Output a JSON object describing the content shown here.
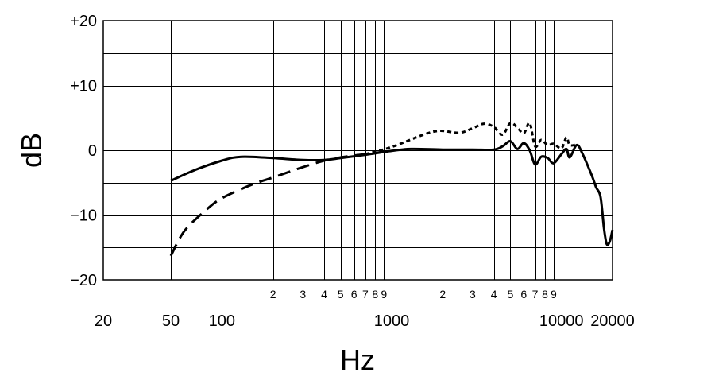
{
  "chart_data": {
    "type": "line",
    "title": "",
    "xlabel": "Hz",
    "ylabel": "dB",
    "xscale": "log",
    "xlim": [
      20,
      20000
    ],
    "ylim": [
      -20,
      20
    ],
    "grid": true,
    "y_ticks": [
      {
        "value": 20,
        "label": "+20"
      },
      {
        "value": 10,
        "label": "+10"
      },
      {
        "value": 0,
        "label": "0"
      },
      {
        "value": -10,
        "label": "−10"
      },
      {
        "value": -20,
        "label": "−20"
      }
    ],
    "x_major_ticks": [
      {
        "value": 20,
        "label": "20"
      },
      {
        "value": 50,
        "label": "50"
      },
      {
        "value": 100,
        "label": "100"
      },
      {
        "value": 1000,
        "label": "1000"
      },
      {
        "value": 10000,
        "label": "10000"
      },
      {
        "value": 20000,
        "label": "20000"
      }
    ],
    "x_minor_labels": [
      {
        "value": 200,
        "label": "2"
      },
      {
        "value": 300,
        "label": "3"
      },
      {
        "value": 400,
        "label": "4"
      },
      {
        "value": 500,
        "label": "5"
      },
      {
        "value": 600,
        "label": "6"
      },
      {
        "value": 700,
        "label": "7"
      },
      {
        "value": 800,
        "label": "8"
      },
      {
        "value": 900,
        "label": "9"
      },
      {
        "value": 2000,
        "label": "2"
      },
      {
        "value": 3000,
        "label": "3"
      },
      {
        "value": 4000,
        "label": "4"
      },
      {
        "value": 5000,
        "label": "5"
      },
      {
        "value": 6000,
        "label": "6"
      },
      {
        "value": 7000,
        "label": "7"
      },
      {
        "value": 8000,
        "label": "8"
      },
      {
        "value": 9000,
        "label": "9"
      }
    ],
    "x_gridlines": [
      50,
      100,
      200,
      300,
      400,
      500,
      600,
      700,
      800,
      900,
      1000,
      2000,
      3000,
      4000,
      5000,
      6000,
      7000,
      8000,
      9000,
      10000
    ],
    "y_gridlines": [
      -15,
      -10,
      -5,
      0,
      5,
      10,
      15
    ],
    "series": [
      {
        "style": "solid",
        "points": [
          [
            50,
            -4.7
          ],
          [
            70,
            -3.0
          ],
          [
            100,
            -1.6
          ],
          [
            130,
            -1.0
          ],
          [
            200,
            -1.2
          ],
          [
            300,
            -1.5
          ],
          [
            400,
            -1.5
          ],
          [
            500,
            -1.2
          ],
          [
            700,
            -0.7
          ],
          [
            1000,
            -0.1
          ],
          [
            1300,
            0.2
          ],
          [
            2000,
            0.1
          ],
          [
            3000,
            0.1
          ],
          [
            4000,
            0.1
          ],
          [
            4500,
            0.6
          ],
          [
            5000,
            1.4
          ],
          [
            5500,
            0.2
          ],
          [
            6000,
            1.1
          ],
          [
            6500,
            0.0
          ],
          [
            7000,
            -2.2
          ],
          [
            7600,
            -1.0
          ],
          [
            8300,
            -1.2
          ],
          [
            9000,
            -2.0
          ],
          [
            10000,
            -0.6
          ],
          [
            10700,
            0.2
          ],
          [
            11200,
            -1.1
          ],
          [
            12300,
            0.8
          ],
          [
            13300,
            -0.5
          ],
          [
            15000,
            -3.7
          ],
          [
            16000,
            -5.7
          ],
          [
            17000,
            -7.2
          ],
          [
            17800,
            -12.0
          ],
          [
            18500,
            -14.5
          ],
          [
            19300,
            -14.0
          ],
          [
            20000,
            -12.3
          ]
        ]
      },
      {
        "style": "dashed",
        "points": [
          [
            50,
            -16.3
          ],
          [
            60,
            -12.5
          ],
          [
            80,
            -9.3
          ],
          [
            100,
            -7.4
          ],
          [
            150,
            -5.3
          ],
          [
            200,
            -4.2
          ],
          [
            300,
            -2.6
          ],
          [
            400,
            -1.6
          ],
          [
            500,
            -1.1
          ],
          [
            700,
            -0.6
          ],
          [
            1000,
            -0.1
          ]
        ]
      },
      {
        "style": "dotted",
        "points": [
          [
            700,
            -0.6
          ],
          [
            1000,
            0.5
          ],
          [
            1500,
            2.3
          ],
          [
            1900,
            3.0
          ],
          [
            2500,
            2.7
          ],
          [
            3000,
            3.4
          ],
          [
            3500,
            4.1
          ],
          [
            4000,
            3.6
          ],
          [
            4500,
            2.4
          ],
          [
            5000,
            4.2
          ],
          [
            5500,
            3.5
          ],
          [
            6000,
            2.6
          ],
          [
            6500,
            4.2
          ],
          [
            7000,
            0.6
          ],
          [
            7600,
            1.6
          ],
          [
            8300,
            0.8
          ],
          [
            9000,
            1.0
          ],
          [
            10000,
            0.3
          ],
          [
            10700,
            2.0
          ],
          [
            11200,
            0.8
          ],
          [
            12300,
            0.9
          ]
        ]
      }
    ]
  }
}
